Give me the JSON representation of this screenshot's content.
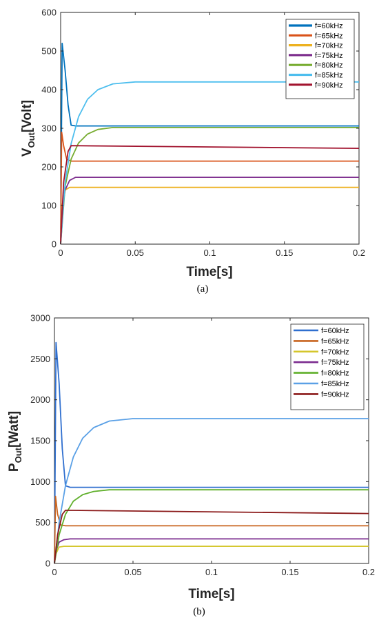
{
  "chart_data": [
    {
      "type": "line",
      "caption": "(a)",
      "xlabel": "Time[s]",
      "ylabel_main": "V",
      "ylabel_sub": "Out",
      "ylabel_tail": "[Volt]",
      "xlim": [
        0,
        0.2
      ],
      "ylim": [
        0,
        600
      ],
      "xticks": [
        "0",
        "0.05",
        "0.1",
        "0.15",
        "0.2"
      ],
      "yticks": [
        "0",
        "100",
        "200",
        "300",
        "400",
        "500",
        "600"
      ],
      "grid": false,
      "legend_position": "top-right",
      "series": [
        {
          "name": "f=60kHz",
          "color": "#0072BD",
          "x": [
            0,
            0.001,
            0.003,
            0.005,
            0.007,
            0.01,
            0.2
          ],
          "y": [
            0,
            520,
            450,
            360,
            308,
            306,
            306
          ]
        },
        {
          "name": "f=65kHz",
          "color": "#D95319",
          "x": [
            0,
            0.0007,
            0.002,
            0.004,
            0.007,
            0.2
          ],
          "y": [
            0,
            290,
            255,
            220,
            215,
            215
          ]
        },
        {
          "name": "f=70kHz",
          "color": "#EDB120",
          "x": [
            0,
            0.001,
            0.003,
            0.006,
            0.2
          ],
          "y": [
            0,
            100,
            140,
            147,
            147
          ]
        },
        {
          "name": "f=75kHz",
          "color": "#7E2F8E",
          "x": [
            0,
            0.001,
            0.003,
            0.006,
            0.01,
            0.2
          ],
          "y": [
            0,
            90,
            140,
            165,
            173,
            173
          ]
        },
        {
          "name": "f=80kHz",
          "color": "#77AC30",
          "x": [
            0,
            0.003,
            0.007,
            0.012,
            0.018,
            0.025,
            0.035,
            0.2
          ],
          "y": [
            0,
            150,
            220,
            262,
            285,
            297,
            302,
            302
          ]
        },
        {
          "name": "f=85kHz",
          "color": "#4DBEEE",
          "x": [
            0,
            0.003,
            0.007,
            0.012,
            0.018,
            0.025,
            0.035,
            0.05,
            0.2
          ],
          "y": [
            0,
            160,
            260,
            330,
            375,
            400,
            415,
            420,
            420
          ]
        },
        {
          "name": "f=90kHz",
          "color": "#A2142F",
          "x": [
            0,
            0.002,
            0.005,
            0.007,
            0.2
          ],
          "y": [
            0,
            160,
            240,
            255,
            248
          ]
        }
      ]
    },
    {
      "type": "line",
      "caption": "(b)",
      "xlabel": "Time[s]",
      "ylabel_main": "P",
      "ylabel_sub": "Out",
      "ylabel_tail": "[Watt]",
      "xlim": [
        0,
        0.2
      ],
      "ylim": [
        0,
        3000
      ],
      "xticks": [
        "0",
        "0.05",
        "0.1",
        "0.15",
        "0.2"
      ],
      "yticks": [
        "0",
        "500",
        "1000",
        "1500",
        "2000",
        "2500",
        "3000"
      ],
      "grid": false,
      "legend_position": "top-right",
      "series": [
        {
          "name": "f=60kHz",
          "color": "#2F6FCF",
          "x": [
            0,
            0.001,
            0.003,
            0.005,
            0.007,
            0.01,
            0.2
          ],
          "y": [
            0,
            2700,
            2200,
            1400,
            950,
            930,
            930
          ]
        },
        {
          "name": "f=65kHz",
          "color": "#C8641F",
          "x": [
            0,
            0.0007,
            0.002,
            0.004,
            0.007,
            0.2
          ],
          "y": [
            0,
            820,
            600,
            470,
            460,
            460
          ]
        },
        {
          "name": "f=70kHz",
          "color": "#D4C62C",
          "x": [
            0,
            0.001,
            0.003,
            0.006,
            0.2
          ],
          "y": [
            0,
            120,
            200,
            210,
            210
          ]
        },
        {
          "name": "f=75kHz",
          "color": "#7A2A8E",
          "x": [
            0,
            0.001,
            0.003,
            0.006,
            0.01,
            0.2
          ],
          "y": [
            0,
            150,
            260,
            290,
            300,
            300
          ]
        },
        {
          "name": "f=80kHz",
          "color": "#5FAF2A",
          "x": [
            0,
            0.003,
            0.007,
            0.012,
            0.018,
            0.025,
            0.035,
            0.2
          ],
          "y": [
            0,
            350,
            600,
            760,
            840,
            880,
            900,
            900
          ]
        },
        {
          "name": "f=85kHz",
          "color": "#5AA0E6",
          "x": [
            0,
            0.003,
            0.007,
            0.012,
            0.018,
            0.025,
            0.035,
            0.05,
            0.2
          ],
          "y": [
            0,
            500,
            950,
            1300,
            1530,
            1660,
            1740,
            1770,
            1770
          ]
        },
        {
          "name": "f=90kHz",
          "color": "#8B1A1A",
          "x": [
            0,
            0.002,
            0.005,
            0.007,
            0.2
          ],
          "y": [
            0,
            350,
            600,
            650,
            610
          ]
        }
      ]
    }
  ]
}
